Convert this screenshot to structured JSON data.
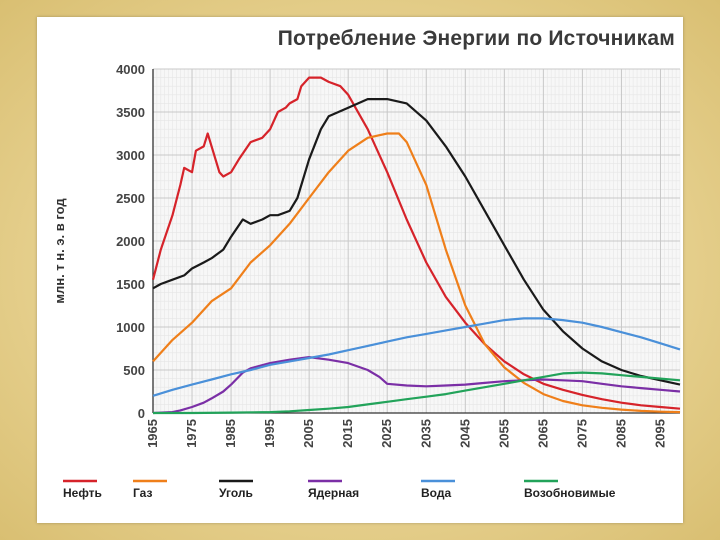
{
  "chart_data": {
    "type": "line",
    "title": "Потребление Энергии по Источникам",
    "ylabel": "млн. т н. э. в год",
    "xlabel": "",
    "xlim": [
      1965,
      2100
    ],
    "ylim": [
      0,
      4000
    ],
    "yticks": [
      0,
      500,
      1000,
      1500,
      2000,
      2500,
      3000,
      3500,
      4000
    ],
    "xticks": [
      1965,
      1975,
      1985,
      1995,
      2005,
      2015,
      2025,
      2035,
      2045,
      2055,
      2065,
      2075,
      2085,
      2095
    ],
    "grid": true,
    "legend_position": "bottom",
    "series": [
      {
        "name": "Нефть",
        "color": "#d6232a",
        "x": [
          1965,
          1967,
          1970,
          1972,
          1973,
          1975,
          1976,
          1978,
          1979,
          1980,
          1982,
          1983,
          1985,
          1987,
          1990,
          1993,
          1995,
          1997,
          1999,
          2000,
          2002,
          2003,
          2005,
          2008,
          2010,
          2013,
          2015,
          2020,
          2025,
          2030,
          2035,
          2040,
          2045,
          2050,
          2055,
          2060,
          2065,
          2070,
          2075,
          2080,
          2085,
          2090,
          2095,
          2100
        ],
        "y": [
          1550,
          1900,
          2300,
          2650,
          2850,
          2800,
          3050,
          3100,
          3250,
          3100,
          2800,
          2750,
          2800,
          2950,
          3150,
          3200,
          3300,
          3500,
          3550,
          3600,
          3650,
          3800,
          3900,
          3900,
          3850,
          3800,
          3700,
          3300,
          2800,
          2250,
          1750,
          1350,
          1050,
          800,
          600,
          450,
          340,
          270,
          210,
          160,
          120,
          90,
          70,
          50
        ]
      },
      {
        "name": "Газ",
        "color": "#ef7f1a",
        "x": [
          1965,
          1970,
          1975,
          1980,
          1985,
          1990,
          1995,
          2000,
          2005,
          2010,
          2015,
          2020,
          2025,
          2028,
          2030,
          2035,
          2040,
          2045,
          2050,
          2055,
          2060,
          2065,
          2070,
          2075,
          2080,
          2085,
          2090,
          2095,
          2100
        ],
        "y": [
          600,
          850,
          1050,
          1300,
          1450,
          1750,
          1950,
          2200,
          2500,
          2800,
          3050,
          3200,
          3250,
          3250,
          3150,
          2650,
          1900,
          1250,
          800,
          530,
          350,
          220,
          140,
          90,
          60,
          40,
          25,
          15,
          10
        ]
      },
      {
        "name": "Уголь",
        "color": "#1a1a1a",
        "x": [
          1965,
          1967,
          1970,
          1973,
          1975,
          1978,
          1980,
          1983,
          1985,
          1988,
          1990,
          1993,
          1995,
          1997,
          2000,
          2002,
          2005,
          2008,
          2010,
          2015,
          2020,
          2025,
          2030,
          2035,
          2040,
          2045,
          2050,
          2055,
          2060,
          2065,
          2070,
          2075,
          2080,
          2085,
          2090,
          2095,
          2100
        ],
        "y": [
          1450,
          1500,
          1550,
          1600,
          1680,
          1750,
          1800,
          1900,
          2050,
          2250,
          2200,
          2250,
          2300,
          2300,
          2350,
          2500,
          2950,
          3300,
          3450,
          3550,
          3650,
          3650,
          3600,
          3400,
          3100,
          2750,
          2350,
          1950,
          1550,
          1200,
          950,
          750,
          600,
          500,
          430,
          380,
          330
        ]
      },
      {
        "name": "Ядерная",
        "color": "#7b2fa6",
        "x": [
          1965,
          1970,
          1972,
          1975,
          1978,
          1980,
          1983,
          1985,
          1988,
          1990,
          1995,
          2000,
          2005,
          2010,
          2015,
          2020,
          2023,
          2025,
          2030,
          2035,
          2040,
          2045,
          2050,
          2055,
          2060,
          2065,
          2070,
          2075,
          2080,
          2085,
          2090,
          2095,
          2100
        ],
        "y": [
          0,
          10,
          30,
          70,
          120,
          170,
          250,
          330,
          470,
          520,
          580,
          620,
          650,
          620,
          580,
          500,
          420,
          340,
          320,
          310,
          320,
          330,
          350,
          370,
          380,
          390,
          380,
          370,
          340,
          310,
          290,
          270,
          250
        ]
      },
      {
        "name": "Вода",
        "color": "#4a90d9",
        "x": [
          1965,
          1970,
          1975,
          1980,
          1985,
          1990,
          1995,
          2000,
          2005,
          2010,
          2015,
          2020,
          2025,
          2030,
          2035,
          2040,
          2045,
          2050,
          2055,
          2060,
          2065,
          2070,
          2075,
          2080,
          2085,
          2090,
          2095,
          2100
        ],
        "y": [
          200,
          270,
          330,
          390,
          450,
          500,
          560,
          600,
          640,
          680,
          730,
          780,
          830,
          880,
          920,
          960,
          1000,
          1040,
          1080,
          1100,
          1100,
          1080,
          1050,
          1000,
          940,
          880,
          810,
          740
        ]
      },
      {
        "name": "Возобновимые",
        "color": "#22a35a",
        "x": [
          1965,
          1975,
          1985,
          1995,
          2000,
          2005,
          2010,
          2015,
          2020,
          2025,
          2030,
          2035,
          2040,
          2045,
          2050,
          2055,
          2060,
          2065,
          2070,
          2075,
          2080,
          2085,
          2090,
          2095,
          2100
        ],
        "y": [
          0,
          0,
          5,
          10,
          20,
          35,
          50,
          70,
          100,
          130,
          160,
          190,
          220,
          260,
          300,
          340,
          380,
          420,
          460,
          470,
          460,
          440,
          420,
          400,
          380
        ]
      }
    ]
  }
}
